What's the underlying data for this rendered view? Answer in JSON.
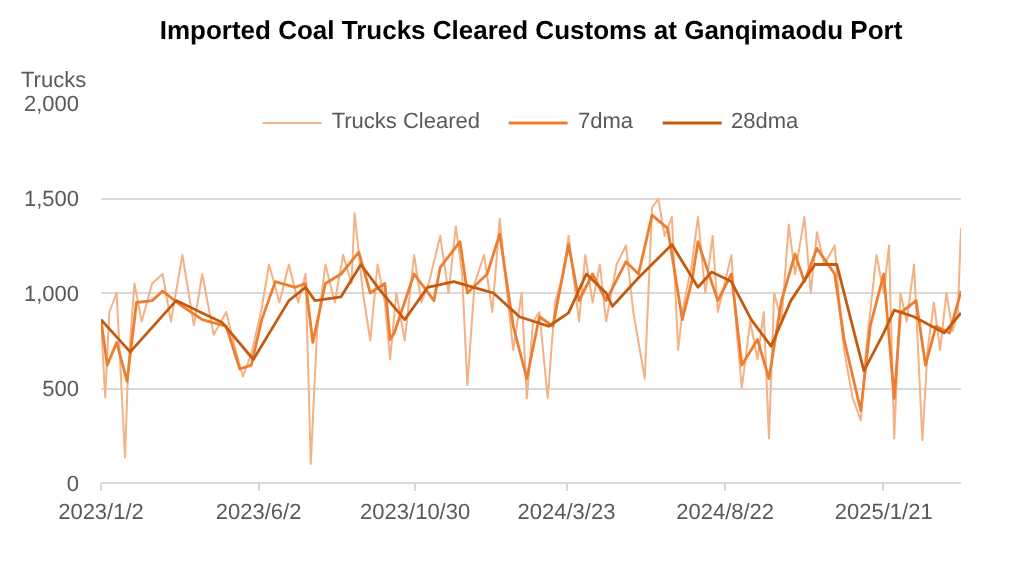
{
  "chart_data": {
    "type": "line",
    "title": "Imported Coal Trucks Cleared Customs at Ganqimaodu Port",
    "ylabel": "Trucks",
    "xlim": [
      "2023-01-02",
      "2025-04-05"
    ],
    "xticks": [
      {
        "value": "2023-01-02",
        "label": "2023/1/2"
      },
      {
        "value": "2023-06-02",
        "label": "2023/6/2"
      },
      {
        "value": "2023-10-30",
        "label": "2023/10/30"
      },
      {
        "value": "2024-03-23",
        "label": "2024/3/23"
      },
      {
        "value": "2024-08-22",
        "label": "2024/8/22"
      },
      {
        "value": "2025-01-21",
        "label": "2025/1/21"
      }
    ],
    "ylim": [
      0,
      2000
    ],
    "yticks": [
      0,
      500,
      {
        "value": 1000,
        "label": "1,000"
      },
      {
        "value": 1500,
        "label": "1,500"
      },
      {
        "value": 2000,
        "label": "2,000"
      }
    ],
    "grid": "y",
    "legend": "top",
    "marker": "none",
    "line_style": "solid",
    "series": [
      {
        "name": "Trucks Cleared",
        "color": "#f4b183",
        "x": [
          "2023-01-02",
          "2023-01-06",
          "2023-01-10",
          "2023-01-17",
          "2023-01-25",
          "2023-01-28",
          "2023-02-03",
          "2023-02-10",
          "2023-02-20",
          "2023-03-02",
          "2023-03-10",
          "2023-03-21",
          "2023-04-01",
          "2023-04-09",
          "2023-04-20",
          "2023-05-02",
          "2023-05-10",
          "2023-05-18",
          "2023-05-26",
          "2023-06-05",
          "2023-06-12",
          "2023-06-22",
          "2023-07-01",
          "2023-07-10",
          "2023-07-17",
          "2023-07-22",
          "2023-07-28",
          "2023-08-05",
          "2023-08-14",
          "2023-08-22",
          "2023-08-30",
          "2023-09-02",
          "2023-09-10",
          "2023-09-17",
          "2023-09-24",
          "2023-10-01",
          "2023-10-06",
          "2023-10-12",
          "2023-10-20",
          "2023-10-29",
          "2023-11-05",
          "2023-11-12",
          "2023-11-23",
          "2023-12-01",
          "2023-12-08",
          "2023-12-14",
          "2023-12-19",
          "2023-12-26",
          "2024-01-04",
          "2024-01-12",
          "2024-01-19",
          "2024-01-26",
          "2024-02-01",
          "2024-02-09",
          "2024-02-14",
          "2024-02-20",
          "2024-02-26",
          "2024-03-05",
          "2024-03-12",
          "2024-03-20",
          "2024-03-25",
          "2024-04-04",
          "2024-04-10",
          "2024-04-17",
          "2024-04-24",
          "2024-04-30",
          "2024-05-10",
          "2024-05-19",
          "2024-05-26",
          "2024-06-06",
          "2024-06-13",
          "2024-06-19",
          "2024-06-25",
          "2024-07-02",
          "2024-07-08",
          "2024-07-12",
          "2024-07-21",
          "2024-07-27",
          "2024-08-03",
          "2024-08-10",
          "2024-08-15",
          "2024-08-28",
          "2024-09-02",
          "2024-09-07",
          "2024-09-15",
          "2024-09-22",
          "2024-09-28",
          "2024-10-03",
          "2024-10-08",
          "2024-10-15",
          "2024-10-22",
          "2024-10-28",
          "2024-11-06",
          "2024-11-12",
          "2024-11-18",
          "2024-11-25",
          "2024-12-05",
          "2024-12-10",
          "2024-12-14",
          "2024-12-22",
          "2024-12-30",
          "2025-01-04",
          "2025-01-08",
          "2025-01-14",
          "2025-01-21",
          "2025-01-26",
          "2025-01-31",
          "2025-02-06",
          "2025-02-12",
          "2025-02-19",
          "2025-02-27",
          "2025-03-04",
          "2025-03-10",
          "2025-03-16",
          "2025-03-22",
          "2025-03-28",
          "2025-04-02",
          "2025-04-05"
        ],
        "values": [
          860,
          450,
          900,
          1000,
          135,
          600,
          1050,
          850,
          1050,
          1100,
          850,
          1200,
          830,
          1100,
          780,
          900,
          720,
          560,
          680,
          920,
          1150,
          950,
          1150,
          950,
          1100,
          100,
          800,
          1150,
          950,
          1200,
          1050,
          1420,
          1000,
          750,
          1150,
          950,
          650,
          1000,
          750,
          1200,
          950,
          1050,
          1300,
          1000,
          1350,
          1100,
          515,
          1050,
          1200,
          900,
          1390,
          1000,
          700,
          1000,
          445,
          850,
          900,
          445,
          950,
          1100,
          1300,
          850,
          1200,
          950,
          1150,
          850,
          1150,
          1250,
          900,
          550,
          1450,
          1495,
          1300,
          1400,
          700,
          900,
          1150,
          1400,
          1000,
          1300,
          900,
          1200,
          800,
          500,
          850,
          650,
          900,
          235,
          1000,
          850,
          1360,
          1100,
          1400,
          1000,
          1320,
          1150,
          1250,
          900,
          700,
          450,
          330,
          700,
          900,
          1200,
          1000,
          1250,
          235,
          1000,
          850,
          1150,
          225,
          700,
          950,
          700,
          1000,
          800,
          900,
          1340
        ]
      },
      {
        "name": "7dma",
        "color": "#ed7d31",
        "x": [
          "2023-01-02",
          "2023-01-08",
          "2023-01-17",
          "2023-01-27",
          "2023-02-05",
          "2023-02-20",
          "2023-03-02",
          "2023-03-21",
          "2023-04-09",
          "2023-05-02",
          "2023-05-15",
          "2023-05-26",
          "2023-06-05",
          "2023-06-18",
          "2023-07-07",
          "2023-07-17",
          "2023-07-24",
          "2023-08-05",
          "2023-08-20",
          "2023-09-06",
          "2023-09-17",
          "2023-10-01",
          "2023-10-06",
          "2023-10-10",
          "2023-10-29",
          "2023-11-17",
          "2023-11-23",
          "2023-12-12",
          "2023-12-19",
          "2024-01-07",
          "2024-01-19",
          "2024-02-01",
          "2024-02-14",
          "2024-02-26",
          "2024-03-10",
          "2024-03-25",
          "2024-04-04",
          "2024-04-17",
          "2024-04-30",
          "2024-05-19",
          "2024-05-31",
          "2024-06-13",
          "2024-06-28",
          "2024-07-12",
          "2024-07-21",
          "2024-07-27",
          "2024-08-15",
          "2024-08-28",
          "2024-09-07",
          "2024-09-22",
          "2024-10-03",
          "2024-10-15",
          "2024-10-28",
          "2024-11-06",
          "2024-11-18",
          "2024-12-05",
          "2024-12-14",
          "2024-12-30",
          "2025-01-08",
          "2025-01-21",
          "2025-01-31",
          "2025-02-06",
          "2025-02-21",
          "2025-03-02",
          "2025-03-12",
          "2025-03-25",
          "2025-04-05"
        ],
        "values": [
          860,
          620,
          740,
          535,
          950,
          960,
          1010,
          930,
          860,
          825,
          600,
          620,
          860,
          1060,
          1030,
          1050,
          740,
          1050,
          1100,
          1215,
          1000,
          1050,
          755,
          790,
          1100,
          960,
          1135,
          1270,
          1000,
          1100,
          1310,
          825,
          550,
          875,
          825,
          1255,
          960,
          1100,
          960,
          1165,
          1100,
          1410,
          1340,
          860,
          1060,
          1270,
          960,
          1100,
          620,
          755,
          550,
          960,
          1205,
          1060,
          1235,
          1100,
          755,
          380,
          825,
          1100,
          445,
          895,
          960,
          620,
          825,
          790,
          1010
        ]
      },
      {
        "name": "28dma",
        "color": "#c55a11",
        "x": [
          "2023-01-02",
          "2023-01-30",
          "2023-03-15",
          "2023-04-28",
          "2023-05-28",
          "2023-07-01",
          "2023-07-17",
          "2023-07-26",
          "2023-08-20",
          "2023-09-08",
          "2023-09-27",
          "2023-10-20",
          "2023-11-11",
          "2023-12-06",
          "2023-12-25",
          "2024-01-13",
          "2024-02-07",
          "2024-03-06",
          "2024-03-25",
          "2024-04-11",
          "2024-04-30",
          "2024-05-06",
          "2024-05-31",
          "2024-07-02",
          "2024-07-27",
          "2024-08-09",
          "2024-08-28",
          "2024-09-16",
          "2024-10-05",
          "2024-10-24",
          "2024-11-16",
          "2024-12-07",
          "2025-01-02",
          "2025-01-21",
          "2025-01-31",
          "2025-02-19",
          "2025-03-20",
          "2025-04-05"
        ],
        "values": [
          860,
          690,
          960,
          845,
          650,
          960,
          1030,
          960,
          980,
          1150,
          1010,
          860,
          1030,
          1060,
          1030,
          1000,
          875,
          825,
          895,
          1100,
          1000,
          930,
          1080,
          1255,
          1030,
          1110,
          1060,
          860,
          720,
          960,
          1150,
          1150,
          590,
          790,
          910,
          875,
          790,
          895
        ]
      }
    ]
  }
}
